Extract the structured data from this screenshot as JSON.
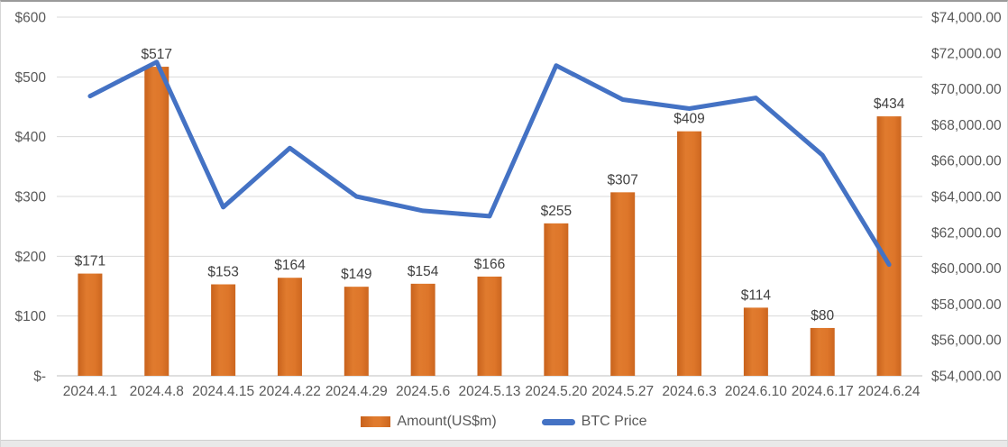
{
  "chart_data": {
    "type": "combo-bar-line",
    "categories": [
      "2024.4.1",
      "2024.4.8",
      "2024.4.15",
      "2024.4.22",
      "2024.4.29",
      "2024.5.6",
      "2024.5.13",
      "2024.5.20",
      "2024.5.27",
      "2024.6.3",
      "2024.6.10",
      "2024.6.17",
      "2024.6.24"
    ],
    "series": [
      {
        "name": "Amount(US$m)",
        "chart_type": "bar",
        "axis": "left",
        "values": [
          171,
          517,
          153,
          164,
          149,
          154,
          166,
          255,
          307,
          409,
          114,
          80,
          434
        ],
        "data_labels": [
          "$171",
          "$517",
          "$153",
          "$164",
          "$149",
          "$154",
          "$166",
          "$255",
          "$307",
          "$409",
          "$114",
          "$80",
          "$434"
        ],
        "color": "#DD7128"
      },
      {
        "name": "BTC Price",
        "chart_type": "line",
        "axis": "right",
        "values": [
          69600,
          71500,
          63400,
          66700,
          64000,
          63200,
          62900,
          71300,
          69400,
          68900,
          69500,
          66300,
          60200
        ],
        "color": "#4472C4"
      }
    ],
    "left_axis": {
      "min": 0,
      "max": 600,
      "step": 100,
      "tick_labels": [
        "$600",
        "$500",
        "$400",
        "$300",
        "$200",
        "$100",
        "$-"
      ]
    },
    "right_axis": {
      "min": 54000,
      "max": 74000,
      "step": 2000,
      "tick_labels": [
        "$74,000.00",
        "$72,000.00",
        "$70,000.00",
        "$68,000.00",
        "$66,000.00",
        "$64,000.00",
        "$62,000.00",
        "$60,000.00",
        "$58,000.00",
        "$56,000.00",
        "$54,000.00"
      ]
    },
    "grid": true,
    "legend_position": "bottom",
    "colors": {
      "bar_fill": "#DD7128",
      "bar_fill_edge": "#C8621C",
      "line_stroke": "#4472C4",
      "gridline": "#D9D9D9",
      "axis_line": "#BFBFBF",
      "axis_text": "#595959",
      "data_label_text": "#404040"
    }
  }
}
